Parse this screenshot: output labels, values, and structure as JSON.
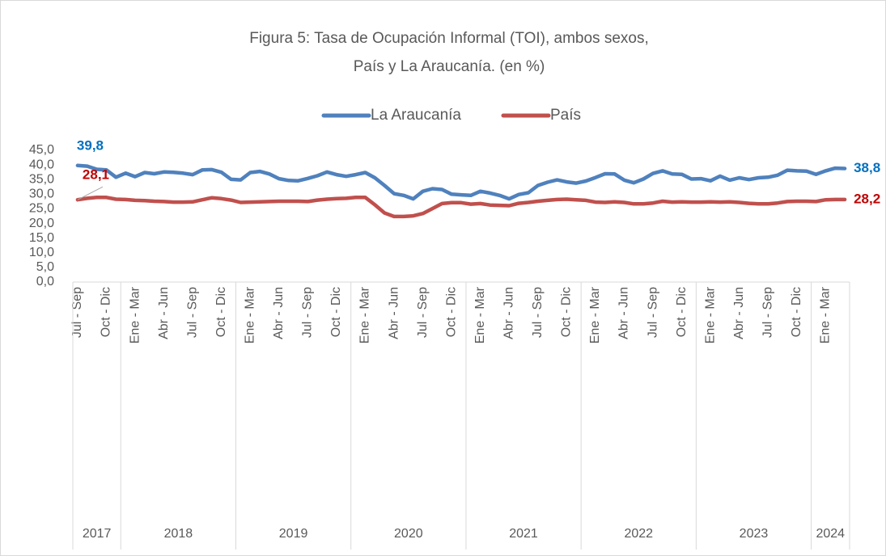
{
  "chart_data": {
    "type": "line",
    "title": [
      "Figura 5: Tasa de Ocupación Informal (TOI), ambos sexos,",
      "País y La Araucanía. (en %)"
    ],
    "categories": [
      "Jul - Sep",
      null,
      null,
      "Oct - Dic",
      null,
      null,
      "Ene - Mar",
      null,
      null,
      "Abr - Jun",
      null,
      null,
      "Jul - Sep",
      null,
      null,
      "Oct - Dic",
      null,
      null,
      "Ene - Mar",
      null,
      null,
      "Abr - Jun",
      null,
      null,
      "Jul - Sep",
      null,
      null,
      "Oct - Dic",
      null,
      null,
      "Ene - Mar",
      null,
      null,
      "Abr - Jun",
      null,
      null,
      "Jul - Sep",
      null,
      null,
      "Oct - Dic",
      null,
      null,
      "Ene - Mar",
      null,
      null,
      "Abr - Jun",
      null,
      null,
      "Jul - Sep",
      null,
      null,
      "Oct - Dic",
      null,
      null,
      "Ene - Mar",
      null,
      null,
      "Abr - Jun",
      null,
      null,
      "Jul - Sep",
      null,
      null,
      "Oct - Dic",
      null,
      null,
      "Ene - Mar",
      null,
      null,
      "Abr - Jun",
      null,
      null,
      "Jul - Sep",
      null,
      null,
      "Oct - Dic",
      null,
      null,
      "Ene - Mar",
      null,
      null
    ],
    "category_groups": [
      {
        "name": "2017",
        "count": 5
      },
      {
        "name": "2018",
        "count": 12
      },
      {
        "name": "2019",
        "count": 12
      },
      {
        "name": "2020",
        "count": 12
      },
      {
        "name": "2021",
        "count": 12
      },
      {
        "name": "2022",
        "count": 12
      },
      {
        "name": "2023",
        "count": 12
      },
      {
        "name": "2024",
        "count": 4
      }
    ],
    "series": [
      {
        "name": "La Araucanía",
        "color": "#4f81bd",
        "label_color": "#0070c0",
        "values": [
          39.8,
          39.6,
          38.5,
          38.3,
          35.8,
          37.2,
          36.0,
          37.4,
          37.0,
          37.6,
          37.5,
          37.2,
          36.7,
          38.3,
          38.4,
          37.5,
          35.1,
          34.9,
          37.4,
          37.8,
          36.9,
          35.3,
          34.7,
          34.6,
          35.4,
          36.3,
          37.6,
          36.7,
          36.1,
          36.7,
          37.4,
          35.6,
          33.0,
          30.2,
          29.6,
          28.4,
          31.0,
          31.9,
          31.6,
          30.0,
          29.8,
          29.6,
          31.0,
          30.4,
          29.6,
          28.4,
          29.9,
          30.5,
          33.0,
          34.1,
          34.9,
          34.2,
          33.8,
          34.5,
          35.7,
          37.0,
          36.9,
          34.8,
          33.9,
          35.2,
          37.1,
          38.0,
          36.9,
          36.8,
          35.2,
          35.3,
          34.6,
          36.2,
          34.8,
          35.6,
          35.0,
          35.6,
          35.8,
          36.5,
          38.2,
          38.0,
          37.9,
          36.8,
          38.0,
          38.9,
          38.8
        ],
        "value_labels": [
          "39,8",
          null,
          null,
          null,
          null,
          null,
          null,
          null,
          null,
          null,
          null,
          null,
          null,
          null,
          null,
          null,
          null,
          null,
          null,
          null,
          null,
          null,
          null,
          null,
          null,
          null,
          null,
          null,
          null,
          null,
          null,
          null,
          null,
          null,
          null,
          null,
          null,
          null,
          null,
          null,
          null,
          null,
          null,
          null,
          null,
          null,
          null,
          null,
          null,
          null,
          null,
          null,
          null,
          null,
          null,
          null,
          null,
          null,
          null,
          null,
          null,
          null,
          null,
          null,
          null,
          null,
          null,
          null,
          null,
          null,
          null,
          null,
          null,
          null,
          null,
          null,
          null,
          null,
          null,
          null,
          "38,8"
        ]
      },
      {
        "name": "País",
        "color": "#c0504d",
        "label_color": "#c00000",
        "values": [
          28.1,
          28.6,
          28.9,
          28.9,
          28.3,
          28.2,
          27.9,
          27.8,
          27.6,
          27.5,
          27.3,
          27.3,
          27.4,
          28.1,
          28.8,
          28.5,
          28.0,
          27.2,
          27.3,
          27.4,
          27.5,
          27.6,
          27.6,
          27.6,
          27.5,
          28.0,
          28.3,
          28.5,
          28.6,
          28.9,
          28.9,
          26.4,
          23.6,
          22.4,
          22.4,
          22.6,
          23.4,
          25.1,
          26.8,
          27.1,
          27.1,
          26.6,
          26.8,
          26.3,
          26.2,
          26.1,
          26.9,
          27.2,
          27.6,
          27.9,
          28.2,
          28.3,
          28.1,
          27.9,
          27.3,
          27.2,
          27.4,
          27.2,
          26.7,
          26.7,
          27.0,
          27.6,
          27.3,
          27.4,
          27.3,
          27.3,
          27.4,
          27.3,
          27.4,
          27.2,
          26.9,
          26.7,
          26.7,
          27.0,
          27.5,
          27.6,
          27.6,
          27.5,
          28.1,
          28.2,
          28.2
        ],
        "value_labels": [
          "28,1",
          null,
          null,
          null,
          null,
          null,
          null,
          null,
          null,
          null,
          null,
          null,
          null,
          null,
          null,
          null,
          null,
          null,
          null,
          null,
          null,
          null,
          null,
          null,
          null,
          null,
          null,
          null,
          null,
          null,
          null,
          null,
          null,
          null,
          null,
          null,
          null,
          null,
          null,
          null,
          null,
          null,
          null,
          null,
          null,
          null,
          null,
          null,
          null,
          null,
          null,
          null,
          null,
          null,
          null,
          null,
          null,
          null,
          null,
          null,
          null,
          null,
          null,
          null,
          null,
          null,
          null,
          null,
          null,
          null,
          null,
          null,
          null,
          null,
          null,
          null,
          null,
          null,
          null,
          null,
          "28,2"
        ]
      }
    ],
    "ylim": [
      0,
      45
    ],
    "yticks": [
      {
        "value": 0,
        "label": "0,0"
      },
      {
        "value": 5,
        "label": "5,0"
      },
      {
        "value": 10,
        "label": "10,0"
      },
      {
        "value": 15,
        "label": "15,0"
      },
      {
        "value": 20,
        "label": "20,0"
      },
      {
        "value": 25,
        "label": "25,0"
      },
      {
        "value": 30,
        "label": "30,0"
      },
      {
        "value": 35,
        "label": "35,0"
      },
      {
        "value": 40,
        "label": "40,0"
      },
      {
        "value": 45,
        "label": "45,0"
      }
    ],
    "grid": false,
    "legend": "top"
  }
}
